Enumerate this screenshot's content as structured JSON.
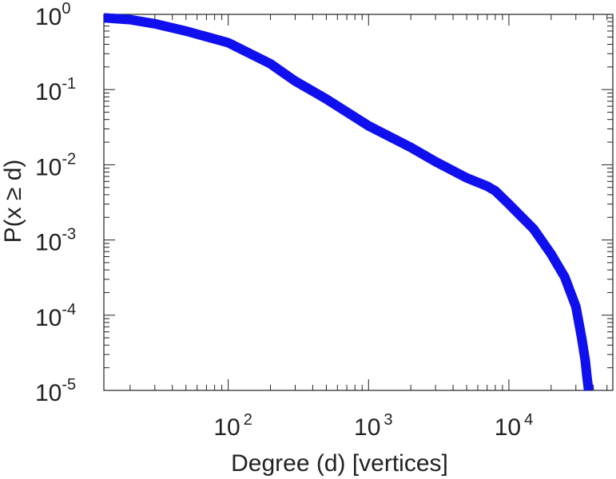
{
  "chart_data": {
    "type": "line",
    "title": "",
    "xlabel": "Degree (d) [vertices]",
    "ylabel": "P(x ≥ d)",
    "x_scale": "log",
    "y_scale": "log",
    "xlim": [
      13,
      55000
    ],
    "ylim": [
      1e-05,
      1
    ],
    "grid": false,
    "legend": "none",
    "series_color": "#1010ee",
    "x_ticks": [
      {
        "value": 100,
        "base": "10",
        "exp": "2"
      },
      {
        "value": 1000,
        "base": "10",
        "exp": "3"
      },
      {
        "value": 10000,
        "base": "10",
        "exp": "4"
      }
    ],
    "y_ticks": [
      {
        "value": 1,
        "base": "10",
        "exp": "0"
      },
      {
        "value": 0.1,
        "base": "10",
        "exp": "-1"
      },
      {
        "value": 0.01,
        "base": "10",
        "exp": "-2"
      },
      {
        "value": 0.001,
        "base": "10",
        "exp": "-3"
      },
      {
        "value": 0.0001,
        "base": "10",
        "exp": "-4"
      },
      {
        "value": 1e-05,
        "base": "10",
        "exp": "-5"
      }
    ],
    "series": [
      {
        "x": [
          13,
          20,
          30,
          50,
          100,
          200,
          300,
          500,
          1000,
          2000,
          3000,
          5000,
          7000,
          8000,
          10000,
          15000,
          20000,
          25000,
          30000,
          33000,
          35000,
          36000,
          37000
        ],
        "y": [
          0.9,
          0.85,
          0.75,
          0.6,
          0.42,
          0.22,
          0.13,
          0.075,
          0.033,
          0.017,
          0.011,
          0.0067,
          0.0052,
          0.0045,
          0.003,
          0.0014,
          0.00065,
          0.00032,
          0.00013,
          5e-05,
          2.5e-05,
          1.5e-05,
          1e-05
        ]
      }
    ]
  }
}
